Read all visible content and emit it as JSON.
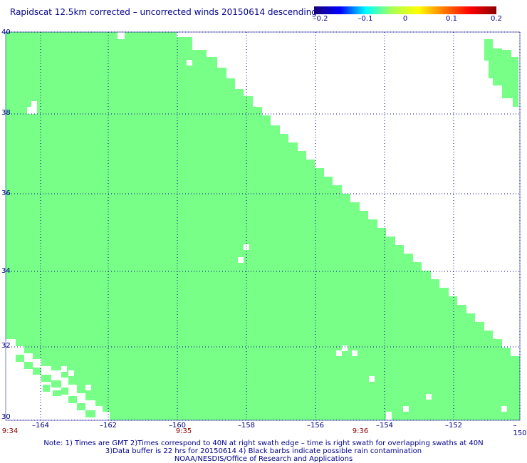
{
  "title": "Rapidscat 12.5km corrected – uncorrected winds 20150614 descending",
  "colorbar": {
    "labels": [
      "–0.2",
      "–0.1",
      "0",
      "0.1",
      "0.2"
    ],
    "colors": [
      "#1a0078",
      "#0000ff",
      "#00ffff",
      "#aaff55",
      "#ffff00",
      "#ff7700",
      "#ff0000",
      "#8b0000"
    ]
  },
  "map": {
    "swath_color": "#77ff88",
    "grid_color": "#00008b",
    "lat_labels": [
      "40",
      "38",
      "36",
      "34",
      "32",
      "30"
    ],
    "lon_labels": [
      "–164",
      "–162",
      "–160",
      "–158",
      "–156",
      "–154",
      "–152",
      "–150"
    ],
    "time_labels": [
      "9:34",
      "9:35",
      "9:36"
    ]
  },
  "notes": [
    "Note: 1) Times are GMT 2)Times correspond to 40N at right swath edge – time is right swath for overlapping swaths at 40N",
    "3)Data buffer is 22 hrs for 20150614 4) Black barbs indicate possible rain contamination",
    "NOAA/NESDIS/Office of Research and Applications"
  ]
}
